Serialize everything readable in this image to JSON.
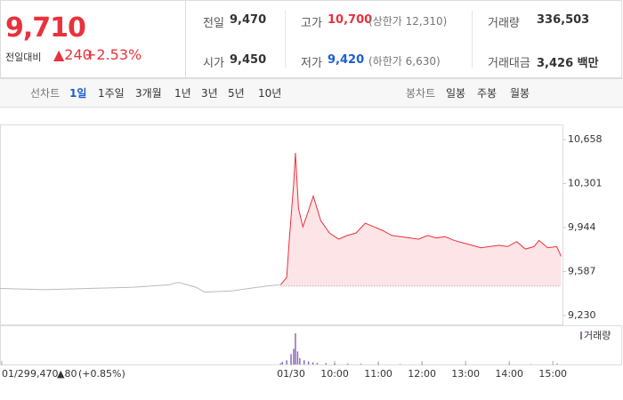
{
  "header": {
    "price": "9,710",
    "change_label": "전일대비",
    "change": "▲240",
    "change_pct": "+2.53%",
    "stats": [
      [
        {
          "label": "전일",
          "value": "9,470"
        },
        {
          "label": "고가",
          "value": "10,700",
          "note": "(상한가 12,310)"
        },
        {
          "label": "거래량",
          "value": "336,503"
        }
      ],
      [
        {
          "label": "시가",
          "value": "9,450"
        },
        {
          "label": "저가",
          "value": "9,420",
          "note": "(하한가 6,630)"
        },
        {
          "label": "거래대금",
          "value": "3,426 백만"
        }
      ]
    ]
  },
  "tabs": {
    "line_label": "선차트",
    "periods": [
      "1일",
      "1주일",
      "3개월",
      "1년",
      "3년",
      "5년",
      "10년"
    ],
    "selected": 0,
    "candle_label": "봉차트",
    "candles": [
      "일봉",
      "주봉",
      "월봉"
    ]
  },
  "chart_data": [
    {
      "type": "line",
      "x": [
        2.33,
        3.35,
        4.37,
        5.39,
        6.21,
        6.41,
        6.82,
        7.02,
        7.64,
        8.04,
        8.45,
        8.74,
        8.76,
        8.9,
        8.96,
        9.06,
        9.1,
        9.17,
        9.27,
        9.37,
        9.51,
        9.68,
        9.88,
        10.09,
        10.29,
        10.49,
        10.7,
        10.9,
        11.1,
        11.31,
        11.51,
        11.72,
        11.92,
        12.13,
        12.33,
        12.53,
        12.74,
        12.94,
        13.15,
        13.35,
        13.55,
        13.76,
        13.96,
        14.17,
        14.37,
        14.57,
        14.68,
        14.88,
        15.09,
        15.19
      ],
      "series": [
        {
          "color": "#bbbbbb",
          "values": [
            9450,
            9440,
            9450,
            9460,
            9480,
            9500,
            9460,
            9420,
            9430,
            9450,
            9470,
            9480,
            null,
            null,
            null,
            null,
            null,
            null,
            null,
            null,
            null,
            null,
            null,
            null,
            null,
            null,
            null,
            null,
            null,
            null,
            null,
            null,
            null,
            null,
            null,
            null,
            null,
            null,
            null,
            null,
            null,
            null,
            null,
            null,
            null,
            null,
            null,
            null,
            null,
            null
          ]
        },
        {
          "color": "#e8323c",
          "fill": "#fde4e6",
          "values": [
            null,
            null,
            null,
            null,
            null,
            null,
            null,
            null,
            null,
            null,
            null,
            null,
            9480,
            9540,
            9850,
            10300,
            10550,
            10100,
            9950,
            10050,
            10200,
            10000,
            9900,
            9850,
            9880,
            9900,
            9980,
            9950,
            9920,
            9880,
            9870,
            9860,
            9850,
            9880,
            9860,
            9870,
            9840,
            9820,
            9800,
            9780,
            9790,
            9800,
            9790,
            9830,
            9770,
            9790,
            9840,
            9780,
            9790,
            9710
          ]
        }
      ],
      "baseline": 9470,
      "xlim": [
        2.33,
        15.22
      ],
      "xticks": [
        {
          "value": 2.37,
          "label": "01/29"
        },
        {
          "value": 9,
          "label": "01/30"
        },
        {
          "value": 10,
          "label": "10:00"
        },
        {
          "value": 11,
          "label": "11:00"
        },
        {
          "value": 12,
          "label": "12:00"
        },
        {
          "value": 13,
          "label": "13:00"
        },
        {
          "value": 14,
          "label": "14:00"
        },
        {
          "value": 15,
          "label": "15:00"
        }
      ],
      "ylim": [
        9158,
        10781
      ],
      "yticks": [
        {
          "value": 10658,
          "label": "10,658"
        },
        {
          "value": 10301,
          "label": "10,301"
        },
        {
          "value": 9944,
          "label": "9,944"
        },
        {
          "value": 9587,
          "label": "9,587"
        },
        {
          "value": 9230,
          "label": "9,230"
        }
      ],
      "annotations": [
        "9,470",
        "▲80",
        "(+0.85%)"
      ]
    },
    {
      "type": "bar",
      "x": [
        8.76,
        8.8,
        8.9,
        9.0,
        9.06,
        9.1,
        9.15,
        9.2,
        9.3,
        9.4,
        9.5,
        9.6,
        9.8,
        10.0,
        10.3,
        10.6,
        11,
        11.5,
        12,
        13,
        14,
        14.5,
        15.1
      ],
      "series": [
        {
          "name": "거래량",
          "color": "#8b6bb5",
          "values": [
            2000,
            5000,
            8000,
            20000,
            30000,
            60000,
            25000,
            12000,
            8000,
            6000,
            4000,
            3000,
            2500,
            2000,
            1500,
            1200,
            1000,
            800,
            700,
            600,
            800,
            600,
            1500
          ]
        }
      ],
      "xlim": [
        2.33,
        15.22
      ],
      "ylim": [
        0,
        65000
      ]
    }
  ]
}
